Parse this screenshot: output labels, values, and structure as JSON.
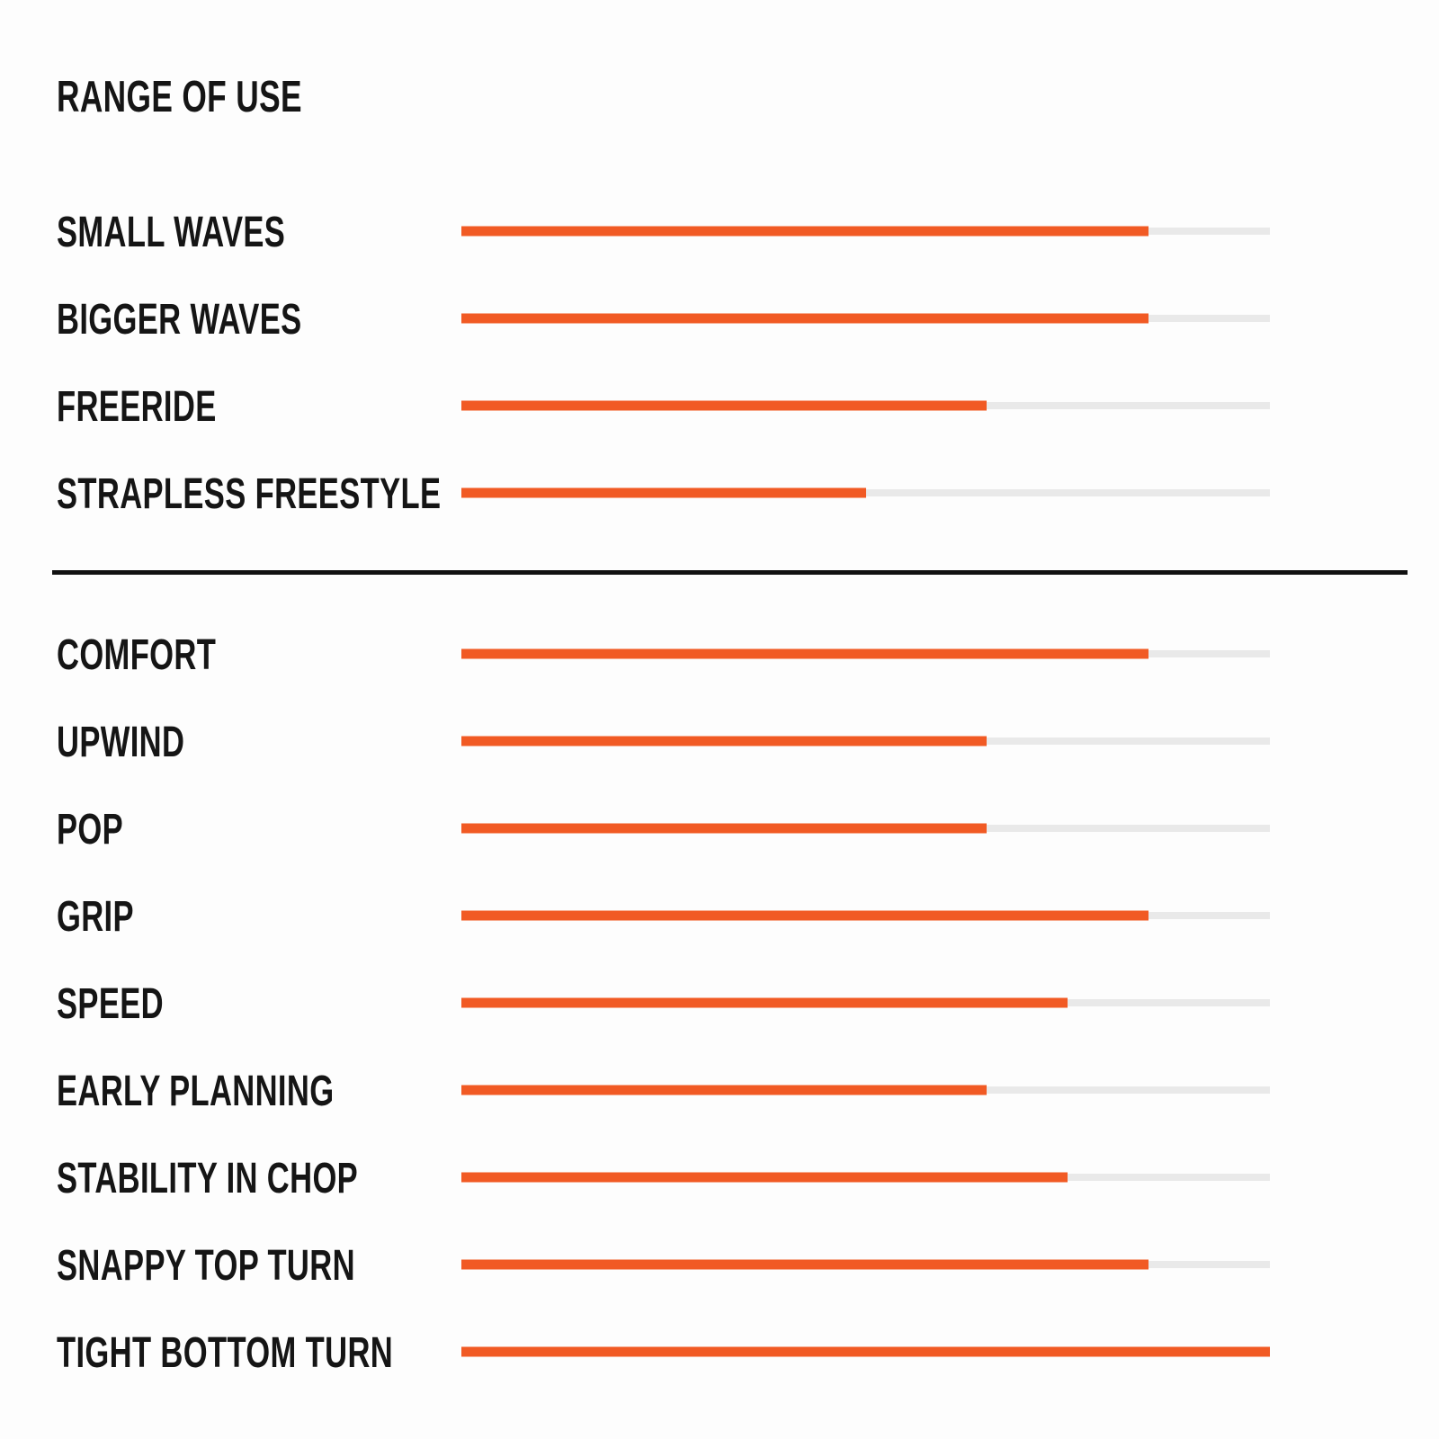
{
  "title": "RANGE OF USE",
  "colors": {
    "bar_fill": "#f15a24",
    "bar_track": "#e9e9e9",
    "text": "#151515",
    "divider": "#111111",
    "background": "#ffffff"
  },
  "chart_data": {
    "type": "bar",
    "orientation": "horizontal",
    "title": "RANGE OF USE",
    "value_unit": "percent_of_track",
    "value_range": [
      0,
      100
    ],
    "grid": false,
    "legend": false,
    "groups": [
      {
        "name": "range-of-use",
        "categories": [
          "SMALL WAVES",
          "BIGGER WAVES",
          "FREERIDE",
          "STRAPLESS FREESTYLE"
        ],
        "values": [
          85,
          85,
          65,
          50
        ]
      },
      {
        "name": "performance-characteristics",
        "categories": [
          "COMFORT",
          "UPWIND",
          "POP",
          "GRIP",
          "SPEED",
          "EARLY PLANNING",
          "STABILITY IN CHOP",
          "SNAPPY TOP TURN",
          "TIGHT BOTTOM TURN"
        ],
        "values": [
          85,
          65,
          65,
          85,
          75,
          65,
          75,
          85,
          100
        ]
      }
    ]
  }
}
